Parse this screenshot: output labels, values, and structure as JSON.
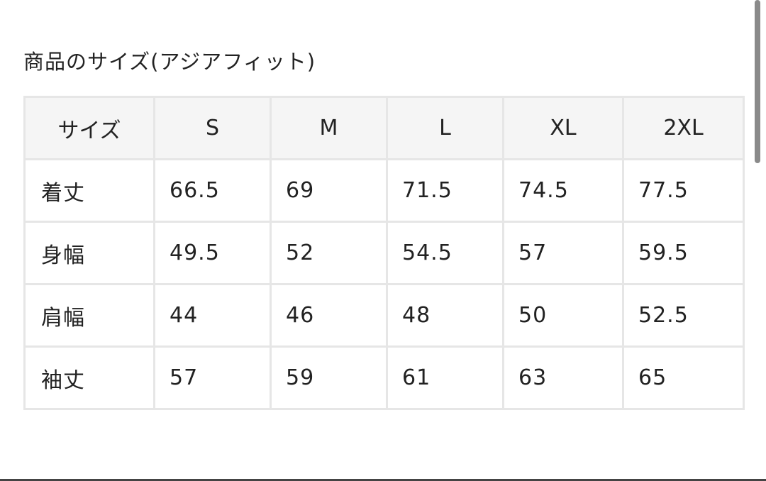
{
  "title": "商品のサイズ(アジアフィット)",
  "table": {
    "headers": [
      "サイズ",
      "S",
      "M",
      "L",
      "XL",
      "2XL"
    ],
    "rows": [
      {
        "label": "着丈",
        "values": [
          "66.5",
          "69",
          "71.5",
          "74.5",
          "77.5"
        ]
      },
      {
        "label": "身幅",
        "values": [
          "49.5",
          "52",
          "54.5",
          "57",
          "59.5"
        ]
      },
      {
        "label": "肩幅",
        "values": [
          "44",
          "46",
          "48",
          "50",
          "52.5"
        ]
      },
      {
        "label": "袖丈",
        "values": [
          "57",
          "59",
          "61",
          "63",
          "65"
        ]
      }
    ]
  }
}
